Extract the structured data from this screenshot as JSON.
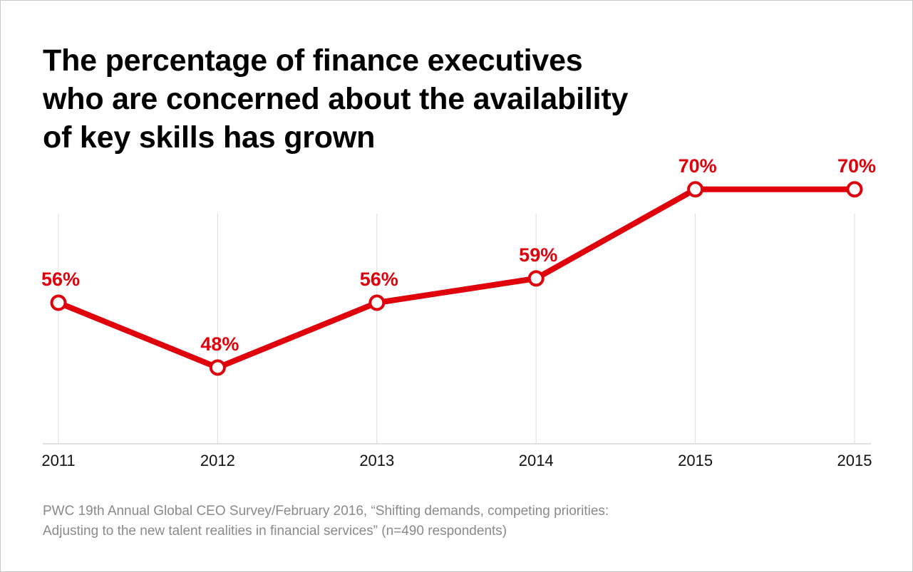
{
  "title": {
    "line1": "The percentage of finance executives",
    "line2": "who are concerned about the availability",
    "line3": "of key skills has grown"
  },
  "source": {
    "line1": "PWC 19th Annual Global CEO Survey/February 2016, “Shifting demands, competing priorities:",
    "line2": "Adjusting to the new talent realities in financial services” (n=490 respondents)"
  },
  "colors": {
    "series": "#e0000b",
    "gridline": "#dcdcdc",
    "axis": "#cfcfcf",
    "tick_text": "#111111"
  },
  "chart_data": {
    "type": "line",
    "categories": [
      "2011",
      "2012",
      "2013",
      "2014",
      "2015",
      "2015"
    ],
    "values": [
      56,
      48,
      56,
      59,
      70,
      70
    ],
    "data_labels": [
      "56%",
      "48%",
      "56%",
      "59%",
      "70%",
      "70%"
    ],
    "title": "The percentage of finance executives who are concerned about the availability of key skills has grown",
    "xlabel": "",
    "ylabel": "",
    "grid": "vertical",
    "legend": "none"
  }
}
